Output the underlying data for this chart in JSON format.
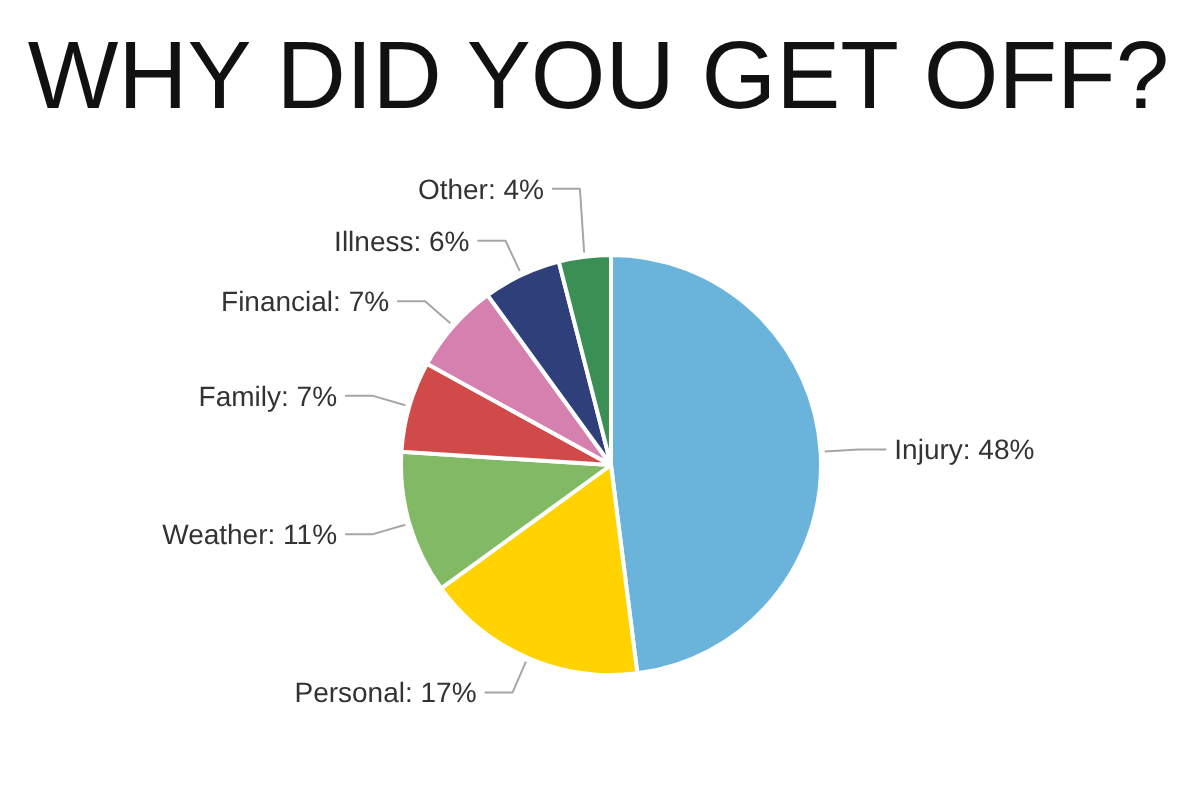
{
  "chart_data": {
    "type": "pie",
    "title": "WHY DID YOU GET OFF?",
    "categories": [
      "Injury",
      "Personal",
      "Weather",
      "Family",
      "Financial",
      "Illness",
      "Other"
    ],
    "values": [
      48,
      17,
      11,
      7,
      7,
      6,
      4
    ],
    "value_labels": [
      "48%",
      "17%",
      "11%",
      "7%",
      "7%",
      "6%",
      "4%"
    ],
    "colors": [
      "#6ab4dc",
      "#ffd200",
      "#82b964",
      "#d04a4a",
      "#d680b0",
      "#2e3f7a",
      "#3a8f55"
    ]
  }
}
